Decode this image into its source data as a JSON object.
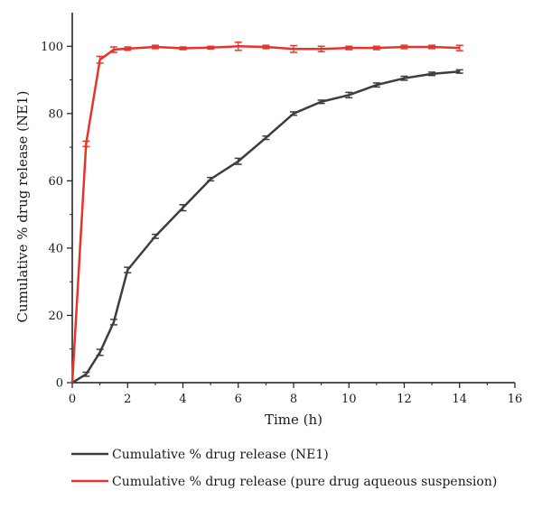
{
  "chart_data": {
    "type": "line",
    "title": "",
    "xlabel": "Time (h)",
    "ylabel": "Cumulative % drug release (NE1)",
    "xlim": [
      0,
      16
    ],
    "ylim": [
      0,
      110
    ],
    "xticks": [
      0,
      2,
      4,
      6,
      8,
      10,
      12,
      14,
      16
    ],
    "yticks": [
      0,
      20,
      40,
      60,
      80,
      100
    ],
    "grid": false,
    "legend_position": "bottom",
    "series": [
      {
        "name": "Cumulative % drug release (NE1)",
        "color": "#3d3d3d",
        "x": [
          0,
          0.5,
          1,
          1.5,
          2,
          3,
          4,
          5,
          6,
          7,
          8,
          9,
          10,
          11,
          12,
          13,
          14
        ],
        "y": [
          0,
          2.5,
          9,
          18,
          33.5,
          43.5,
          52,
          60.5,
          65.8,
          72.8,
          80,
          83.5,
          85.5,
          88.5,
          90.5,
          91.8,
          92.5
        ],
        "err": [
          0,
          0.6,
          0.9,
          0.8,
          0.8,
          0.6,
          0.9,
          0.5,
          0.9,
          0.5,
          0.5,
          0.5,
          0.8,
          0.6,
          0.6,
          0.5,
          0.5
        ]
      },
      {
        "name": "Cumulative % drug release (pure drug aqueous suspension)",
        "color": "#e8332a",
        "x": [
          0,
          0.5,
          1,
          1.5,
          2,
          3,
          4,
          5,
          6,
          7,
          8,
          9,
          10,
          11,
          12,
          13,
          14
        ],
        "y": [
          0,
          71,
          96,
          99,
          99.3,
          99.8,
          99.4,
          99.6,
          100,
          99.8,
          99.2,
          99.2,
          99.5,
          99.5,
          99.8,
          99.8,
          99.5
        ],
        "err": [
          0,
          0.8,
          1.0,
          0.8,
          0.5,
          0.5,
          0.4,
          0.4,
          1.2,
          0.5,
          1.0,
          0.8,
          0.5,
          0.5,
          0.5,
          0.5,
          0.8
        ]
      }
    ]
  }
}
